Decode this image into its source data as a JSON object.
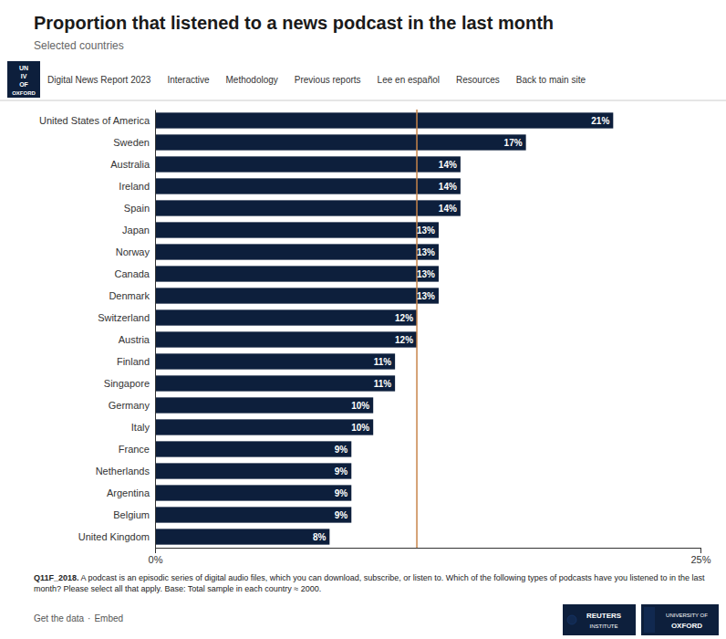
{
  "chart_data": {
    "type": "bar",
    "orientation": "horizontal",
    "title": "Proportion that listened to a news podcast in the last month",
    "subtitle": "Selected countries",
    "categories": [
      "United States of America",
      "Sweden",
      "Australia",
      "Ireland",
      "Spain",
      "Japan",
      "Norway",
      "Canada",
      "Denmark",
      "Switzerland",
      "Austria",
      "Finland",
      "Singapore",
      "Germany",
      "Italy",
      "France",
      "Netherlands",
      "Argentina",
      "Belgium",
      "United Kingdom"
    ],
    "values": [
      21,
      17,
      14,
      14,
      14,
      13,
      13,
      13,
      13,
      12,
      12,
      11,
      11,
      10,
      10,
      9,
      9,
      9,
      9,
      8
    ],
    "value_labels": [
      "21%",
      "17%",
      "14%",
      "14%",
      "14%",
      "13%",
      "13%",
      "13%",
      "13%",
      "12%",
      "12%",
      "11%",
      "11%",
      "10%",
      "10%",
      "9%",
      "9%",
      "9%",
      "9%",
      "8%"
    ],
    "data_labels": true,
    "color": "#0d1f3c",
    "xlim": [
      0,
      25
    ],
    "xticks": [
      {
        "value": 0,
        "label": "0%"
      },
      {
        "value": 25,
        "label": "25%"
      }
    ],
    "grid": false,
    "reference_line": 12,
    "reference_line_color": "#c8854a",
    "nav_items": [
      "Digital News Report 2023",
      "Interactive",
      "Methodology",
      "Previous reports",
      "Lee en español",
      "Resources",
      "Back to main site"
    ],
    "logo_texts": [
      [
        "UN",
        "IV",
        "OF",
        "OXFORD"
      ],
      [
        "REUTERS",
        "INSTITUTE"
      ],
      [
        "UNIVERSITY OF",
        "OXFORD"
      ]
    ],
    "footer_bold": "Q11F_2018.",
    "footer_text": "A podcast is an episodic series of digital audio files, which you can download, subscribe, or listen to. Which of the following types of podcasts have you listened to in the last month? Please select all that apply. Base: Total sample in each country ≈ 2000.",
    "link_text": "Get the data",
    "separator": "·",
    "embed_text": "Embed"
  }
}
